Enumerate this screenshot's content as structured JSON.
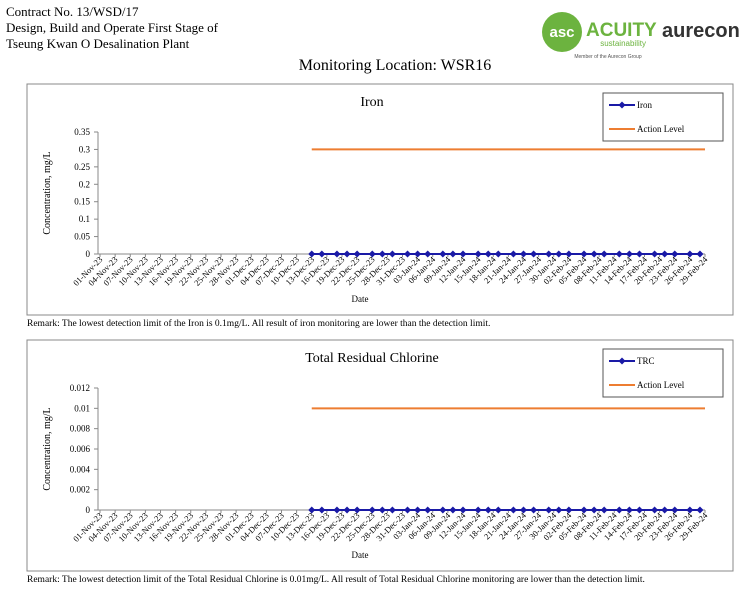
{
  "header": {
    "lines": [
      "Contract No. 13/WSD/17",
      "Design, Build and Operate First Stage of",
      "Tseung Kwan O Desalination Plant"
    ],
    "logo_mark": "asc",
    "logo_name": "ACUITY",
    "logo_tagline": "sustainability",
    "logo_member": "Member of the Aurecon Group",
    "partner": "aurecon",
    "subtitle": "Monitoring Location: WSR16"
  },
  "chart_data": [
    {
      "type": "line",
      "title": "Iron",
      "ylabel": "Concentration, mg/L",
      "xlabel": "Date",
      "xlim": [
        "01-Nov-23",
        "29-Feb-24"
      ],
      "xticks": [
        "01-Nov-23",
        "04-Nov-23",
        "07-Nov-23",
        "10-Nov-23",
        "13-Nov-23",
        "16-Nov-23",
        "19-Nov-23",
        "22-Nov-23",
        "25-Nov-23",
        "28-Nov-23",
        "01-Dec-23",
        "04-Dec-23",
        "07-Dec-23",
        "10-Dec-23",
        "13-Dec-23",
        "16-Dec-23",
        "19-Dec-23",
        "22-Dec-23",
        "25-Dec-23",
        "28-Dec-23",
        "31-Dec-23",
        "03-Jan-24",
        "06-Jan-24",
        "09-Jan-24",
        "12-Jan-24",
        "15-Jan-24",
        "18-Jan-24",
        "21-Jan-24",
        "24-Jan-24",
        "27-Jan-24",
        "30-Jan-24",
        "02-Feb-24",
        "05-Feb-24",
        "08-Feb-24",
        "11-Feb-24",
        "14-Feb-24",
        "17-Feb-24",
        "20-Feb-24",
        "23-Feb-24",
        "26-Feb-24",
        "29-Feb-24"
      ],
      "ylim": [
        0,
        0.35
      ],
      "yticks": [
        0,
        0.05,
        0.1,
        0.15,
        0.2,
        0.25,
        0.3,
        0.35
      ],
      "grid": false,
      "legend": "top-right",
      "series": [
        {
          "name": "Iron",
          "color": "#1a1aa6",
          "marker": "diamond",
          "x": [
            "13-Dec-23",
            "15-Dec-23",
            "18-Dec-23",
            "20-Dec-23",
            "22-Dec-23",
            "25-Dec-23",
            "27-Dec-23",
            "29-Dec-23",
            "01-Jan-24",
            "03-Jan-24",
            "05-Jan-24",
            "08-Jan-24",
            "10-Jan-24",
            "12-Jan-24",
            "15-Jan-24",
            "17-Jan-24",
            "19-Jan-24",
            "22-Jan-24",
            "24-Jan-24",
            "26-Jan-24",
            "29-Jan-24",
            "31-Jan-24",
            "02-Feb-24",
            "05-Feb-24",
            "07-Feb-24",
            "09-Feb-24",
            "12-Feb-24",
            "14-Feb-24",
            "16-Feb-24",
            "19-Feb-24",
            "21-Feb-24",
            "23-Feb-24",
            "26-Feb-24",
            "28-Feb-24"
          ],
          "values": [
            0,
            0,
            0,
            0,
            0,
            0,
            0,
            0,
            0,
            0,
            0,
            0,
            0,
            0,
            0,
            0,
            0,
            0,
            0,
            0,
            0,
            0,
            0,
            0,
            0,
            0,
            0,
            0,
            0,
            0,
            0,
            0,
            0,
            0
          ]
        },
        {
          "name": "Action Level",
          "color": "#ed7d31",
          "x": [
            "13-Dec-23",
            "29-Feb-24"
          ],
          "values": [
            0.3,
            0.3
          ]
        }
      ],
      "annotation": "Remark: The lowest detection limit of the Iron is 0.1mg/L. All result of iron monitoring are lower than the detection limit."
    },
    {
      "type": "line",
      "title": "Total Residual Chlorine",
      "ylabel": "Concentration, mg/L",
      "xlabel": "Date",
      "xlim": [
        "01-Nov-23",
        "29-Feb-24"
      ],
      "xticks": [
        "01-Nov-23",
        "04-Nov-23",
        "07-Nov-23",
        "10-Nov-23",
        "13-Nov-23",
        "16-Nov-23",
        "19-Nov-23",
        "22-Nov-23",
        "25-Nov-23",
        "28-Nov-23",
        "01-Dec-23",
        "04-Dec-23",
        "07-Dec-23",
        "10-Dec-23",
        "13-Dec-23",
        "16-Dec-23",
        "19-Dec-23",
        "22-Dec-23",
        "25-Dec-23",
        "28-Dec-23",
        "31-Dec-23",
        "03-Jan-24",
        "06-Jan-24",
        "09-Jan-24",
        "12-Jan-24",
        "15-Jan-24",
        "18-Jan-24",
        "21-Jan-24",
        "24-Jan-24",
        "27-Jan-24",
        "30-Jan-24",
        "02-Feb-24",
        "05-Feb-24",
        "08-Feb-24",
        "11-Feb-24",
        "14-Feb-24",
        "17-Feb-24",
        "20-Feb-24",
        "23-Feb-24",
        "26-Feb-24",
        "29-Feb-24"
      ],
      "ylim": [
        0,
        0.012
      ],
      "yticks": [
        0,
        0.002,
        0.004,
        0.006,
        0.008,
        0.01,
        0.012
      ],
      "grid": false,
      "legend": "top-right",
      "series": [
        {
          "name": "TRC",
          "color": "#1a1aa6",
          "marker": "diamond",
          "x": [
            "13-Dec-23",
            "15-Dec-23",
            "18-Dec-23",
            "20-Dec-23",
            "22-Dec-23",
            "25-Dec-23",
            "27-Dec-23",
            "29-Dec-23",
            "01-Jan-24",
            "03-Jan-24",
            "05-Jan-24",
            "08-Jan-24",
            "10-Jan-24",
            "12-Jan-24",
            "15-Jan-24",
            "17-Jan-24",
            "19-Jan-24",
            "22-Jan-24",
            "24-Jan-24",
            "26-Jan-24",
            "29-Jan-24",
            "31-Jan-24",
            "02-Feb-24",
            "05-Feb-24",
            "07-Feb-24",
            "09-Feb-24",
            "12-Feb-24",
            "14-Feb-24",
            "16-Feb-24",
            "19-Feb-24",
            "21-Feb-24",
            "23-Feb-24",
            "26-Feb-24",
            "28-Feb-24"
          ],
          "values": [
            0,
            0,
            0,
            0,
            0,
            0,
            0,
            0,
            0,
            0,
            0,
            0,
            0,
            0,
            0,
            0,
            0,
            0,
            0,
            0,
            0,
            0,
            0,
            0,
            0,
            0,
            0,
            0,
            0,
            0,
            0,
            0,
            0,
            0
          ]
        },
        {
          "name": "Action Level",
          "color": "#ed7d31",
          "x": [
            "13-Dec-23",
            "29-Feb-24"
          ],
          "values": [
            0.01,
            0.01
          ]
        }
      ],
      "annotation": "Remark: The lowest detection limit of the Total Residual Chlorine is 0.01mg/L. All result of Total Residual Chlorine monitoring are lower than the detection limit."
    }
  ]
}
